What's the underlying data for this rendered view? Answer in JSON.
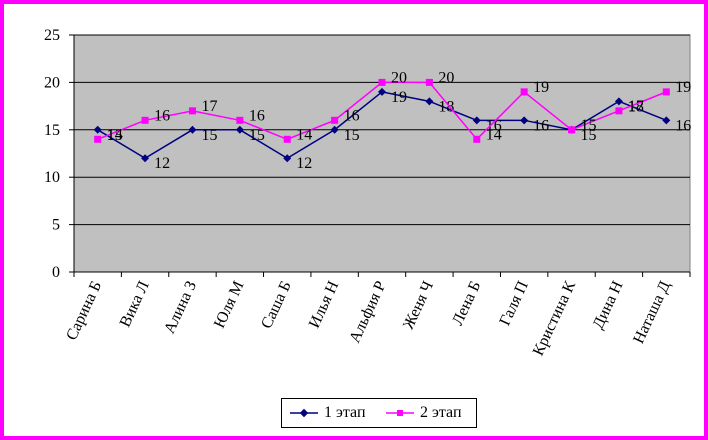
{
  "chart_data": {
    "type": "line",
    "categories": [
      "Сарина Б",
      "Вика Л",
      "Алина З",
      "Юля М",
      "Саша Б",
      "Илья Н",
      "Альфия Р",
      "Женя Ч",
      "Лена Б",
      "Галя П",
      "Кристина К",
      "Дина Н",
      "Наташа Д"
    ],
    "series": [
      {
        "name": "1 этап",
        "values": [
          15,
          12,
          15,
          15,
          12,
          15,
          19,
          18,
          16,
          16,
          15,
          18,
          16
        ],
        "color": "#000080",
        "marker": "diamond"
      },
      {
        "name": "2 этап",
        "values": [
          14,
          16,
          17,
          16,
          14,
          16,
          20,
          20,
          14,
          19,
          15,
          17,
          19
        ],
        "color": "#ff00ff",
        "marker": "square"
      }
    ],
    "ylim": [
      0,
      25
    ],
    "yticks": [
      "0",
      "5",
      "10",
      "15",
      "20",
      "25"
    ],
    "grid": true,
    "plot_background": "#c0c0c0",
    "frame_border_color": "#ff00ff",
    "legend_position": "bottom"
  }
}
